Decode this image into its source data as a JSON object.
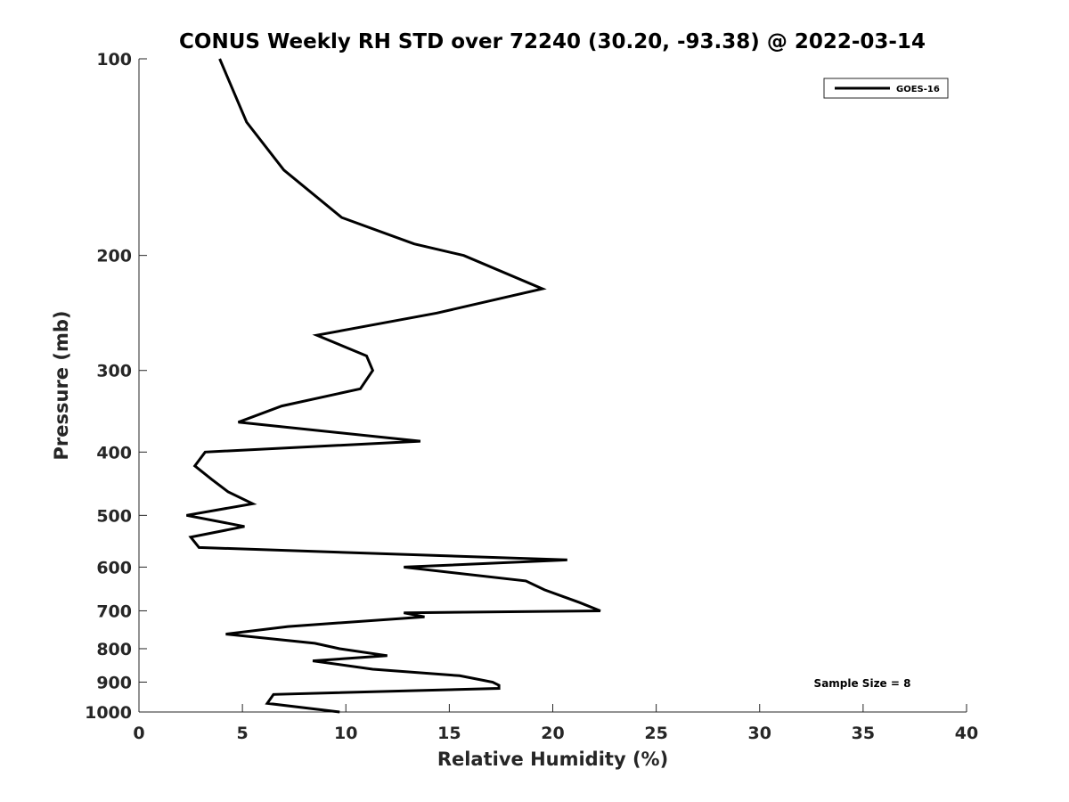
{
  "chart_data": {
    "type": "line",
    "title": "CONUS Weekly RH STD over 72240 (30.20, -93.38) @ 2022-03-14",
    "xlabel": "Relative Humidity (%)",
    "ylabel": "Pressure (mb)",
    "xlim": [
      0,
      40
    ],
    "ylim": [
      100,
      1000
    ],
    "yscale": "log",
    "y_reversed": true,
    "xticks": [
      0,
      5,
      10,
      15,
      20,
      25,
      30,
      35,
      40
    ],
    "yticks": [
      100,
      200,
      300,
      400,
      500,
      600,
      700,
      800,
      900,
      1000
    ],
    "grid": false,
    "legend_position": "top-right",
    "annotation": "Sample Size = 8",
    "colors": {
      "series": "#000000",
      "axis": "#262626"
    },
    "series": [
      {
        "name": "GOES-16",
        "x": [
          3.9,
          5.2,
          7.0,
          9.8,
          13.3,
          15.7,
          19.5,
          14.4,
          8.6,
          11.0,
          11.3,
          10.7,
          6.9,
          4.8,
          13.6,
          3.2,
          2.7,
          3.5,
          4.3,
          5.5,
          2.3,
          5.1,
          2.5,
          2.9,
          20.7,
          12.8,
          18.7,
          19.6,
          21.3,
          22.3,
          12.8,
          13.8,
          7.2,
          4.2,
          8.5,
          9.7,
          12.0,
          8.4,
          11.3,
          15.5,
          17.1,
          17.4,
          17.4,
          6.5,
          6.2,
          9.7
        ],
        "y": [
          100,
          125,
          148,
          175,
          192,
          200,
          225,
          245,
          265,
          285,
          300,
          320,
          340,
          360,
          385,
          400,
          420,
          440,
          460,
          480,
          500,
          520,
          540,
          560,
          585,
          600,
          630,
          650,
          680,
          700,
          705,
          715,
          740,
          760,
          785,
          800,
          820,
          835,
          860,
          880,
          900,
          910,
          920,
          940,
          970,
          1000
        ]
      }
    ]
  }
}
